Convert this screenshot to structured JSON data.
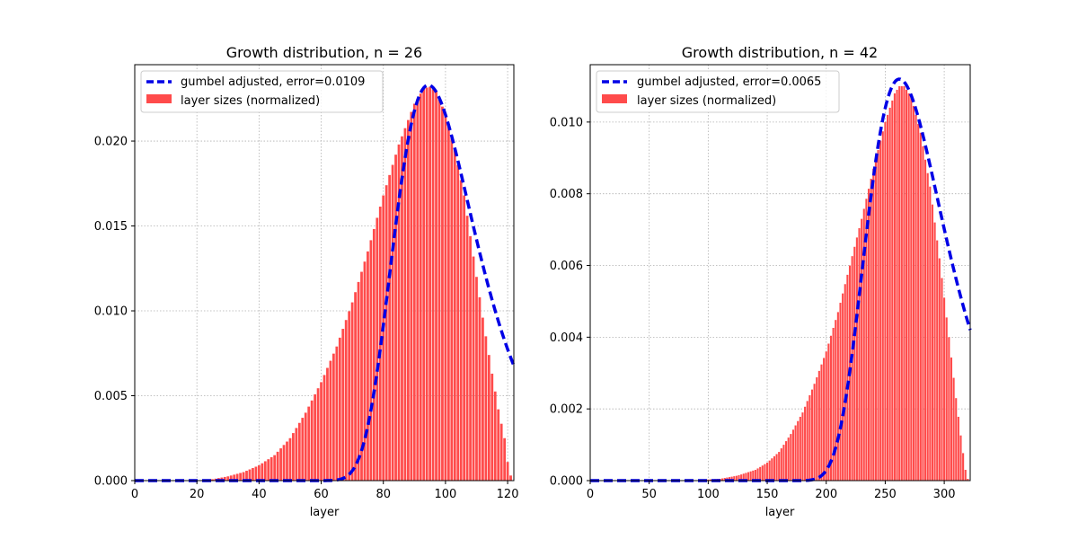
{
  "chart_data": [
    {
      "type": "bar",
      "title": "Growth distribution, n = 26",
      "xlabel": "layer",
      "ylabel": "",
      "xlim": [
        0,
        122
      ],
      "ylim": [
        0,
        0.0245
      ],
      "xticks": [
        0,
        20,
        40,
        60,
        80,
        100,
        120
      ],
      "yticks": [
        0.0,
        0.005,
        0.01,
        0.015,
        0.02
      ],
      "ytick_labels": [
        "0.000",
        "0.005",
        "0.010",
        "0.015",
        "0.020"
      ],
      "grid": true,
      "legend_position": "upper-left",
      "colors": {
        "bars": "#ff4b4b",
        "curve": "#0000e6"
      },
      "legend": [
        {
          "label": "gumbel adjusted, error=0.0109",
          "kind": "line"
        },
        {
          "label": "layer sizes (normalized)",
          "kind": "bar"
        }
      ],
      "bars": {
        "name": "layer sizes (normalized)",
        "x_start": 1,
        "x_end": 121,
        "x_step": 1,
        "profile": [
          [
            20,
            1e-05
          ],
          [
            25,
            8e-05
          ],
          [
            30,
            0.00025
          ],
          [
            35,
            0.0005
          ],
          [
            40,
            0.0009
          ],
          [
            45,
            0.0015
          ],
          [
            50,
            0.0025
          ],
          [
            55,
            0.004
          ],
          [
            60,
            0.0058
          ],
          [
            65,
            0.0079
          ],
          [
            70,
            0.0105
          ],
          [
            75,
            0.0135
          ],
          [
            80,
            0.0168
          ],
          [
            85,
            0.0198
          ],
          [
            90,
            0.0222
          ],
          [
            93,
            0.0231
          ],
          [
            95,
            0.0232
          ],
          [
            97,
            0.0229
          ],
          [
            100,
            0.0216
          ],
          [
            103,
            0.0195
          ],
          [
            106,
            0.0168
          ],
          [
            109,
            0.0132
          ],
          [
            112,
            0.0096
          ],
          [
            115,
            0.0063
          ],
          [
            117,
            0.0042
          ],
          [
            119,
            0.0025
          ],
          [
            120,
            0.0011
          ],
          [
            121,
            0.0003
          ]
        ]
      },
      "curve": {
        "name": "gumbel adjusted, error=0.0109",
        "mode": 94.5,
        "scale": 13.0,
        "peak": 0.0233
      }
    },
    {
      "type": "bar",
      "title": "Growth distribution, n = 42",
      "xlabel": "layer",
      "ylabel": "",
      "xlim": [
        0,
        322
      ],
      "ylim": [
        0,
        0.0116
      ],
      "xticks": [
        0,
        50,
        100,
        150,
        200,
        250,
        300
      ],
      "yticks": [
        0.0,
        0.002,
        0.004,
        0.006,
        0.008,
        0.01
      ],
      "ytick_labels": [
        "0.000",
        "0.002",
        "0.004",
        "0.006",
        "0.008",
        "0.010"
      ],
      "grid": true,
      "legend_position": "upper-left",
      "colors": {
        "bars": "#ff4b4b",
        "curve": "#0000e6"
      },
      "legend": [
        {
          "label": "gumbel adjusted, error=0.0065",
          "kind": "line"
        },
        {
          "label": "layer sizes (normalized)",
          "kind": "bar"
        }
      ],
      "bars": {
        "name": "layer sizes (normalized)",
        "x_start": 2,
        "x_end": 320,
        "x_step": 2,
        "profile": [
          [
            50,
            0.0
          ],
          [
            90,
            1e-05
          ],
          [
            110,
            5e-05
          ],
          [
            125,
            0.00014
          ],
          [
            140,
            0.0003
          ],
          [
            150,
            0.0005
          ],
          [
            160,
            0.0008
          ],
          [
            170,
            0.0013
          ],
          [
            180,
            0.0019
          ],
          [
            190,
            0.0027
          ],
          [
            200,
            0.0036
          ],
          [
            210,
            0.0047
          ],
          [
            220,
            0.006
          ],
          [
            230,
            0.0073
          ],
          [
            240,
            0.0087
          ],
          [
            250,
            0.01
          ],
          [
            258,
            0.0108
          ],
          [
            262,
            0.011
          ],
          [
            266,
            0.011
          ],
          [
            272,
            0.0107
          ],
          [
            280,
            0.0097
          ],
          [
            288,
            0.0082
          ],
          [
            296,
            0.0062
          ],
          [
            304,
            0.004
          ],
          [
            310,
            0.0023
          ],
          [
            315,
            0.001
          ],
          [
            318,
            0.0003
          ],
          [
            320,
            5e-05
          ]
        ]
      },
      "curve": {
        "name": "gumbel adjusted, error=0.0065",
        "mode": 262,
        "scale": 33.0,
        "peak": 0.0112
      }
    }
  ]
}
